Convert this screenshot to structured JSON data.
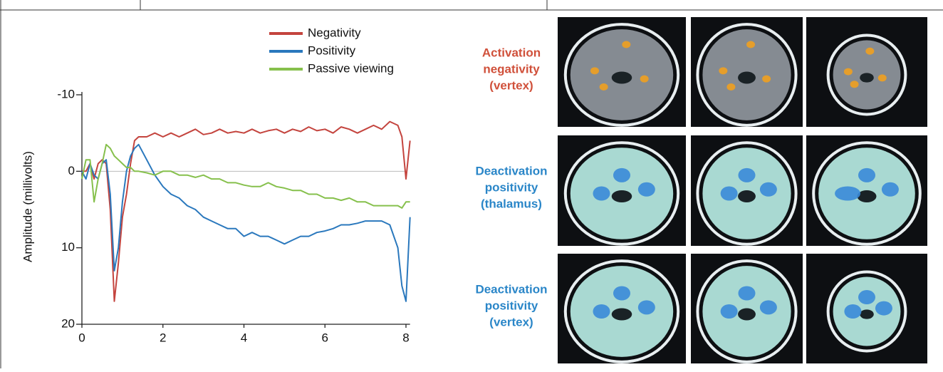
{
  "chart_data": {
    "type": "line",
    "y_label": "Amplitude (millivolts)",
    "x": [
      0,
      0.1,
      0.2,
      0.3,
      0.4,
      0.5,
      0.6,
      0.7,
      0.8,
      0.9,
      1.0,
      1.1,
      1.2,
      1.3,
      1.4,
      1.6,
      1.8,
      2.0,
      2.2,
      2.4,
      2.6,
      2.8,
      3.0,
      3.2,
      3.4,
      3.6,
      3.8,
      4.0,
      4.2,
      4.4,
      4.6,
      4.8,
      5.0,
      5.2,
      5.4,
      5.6,
      5.8,
      6.0,
      6.2,
      6.4,
      6.6,
      6.8,
      7.0,
      7.2,
      7.4,
      7.6,
      7.8,
      7.9,
      8.0,
      8.1
    ],
    "series": [
      {
        "name": "Negativity",
        "color": "#c4443e",
        "values": [
          0,
          0,
          -1,
          1,
          -1,
          -1.5,
          -1,
          5,
          17,
          12,
          6,
          3,
          -1,
          -4,
          -4.5,
          -4.5,
          -5,
          -4.5,
          -5,
          -4.5,
          -5,
          -5.5,
          -4.8,
          -5,
          -5.5,
          -5,
          -5.2,
          -5,
          -5.5,
          -5,
          -5.3,
          -5.5,
          -5,
          -5.5,
          -5.2,
          -5.8,
          -5.3,
          -5.5,
          -5,
          -5.8,
          -5.5,
          -5,
          -5.5,
          -6,
          -5.5,
          -6.5,
          -6,
          -4.5,
          1,
          -4
        ]
      },
      {
        "name": "Positivity",
        "color": "#2a78bd",
        "values": [
          0,
          1,
          -1,
          0.5,
          1,
          -1,
          -1.5,
          3,
          13,
          10,
          4,
          0,
          -2,
          -3,
          -3.5,
          -1.5,
          0.5,
          2,
          3,
          3.5,
          4.5,
          5,
          6,
          6.5,
          7,
          7.5,
          7.5,
          8.5,
          8,
          8.5,
          8.5,
          9,
          9.5,
          9,
          8.5,
          8.5,
          8,
          7.8,
          7.5,
          7,
          7,
          6.8,
          6.5,
          6.5,
          6.5,
          7,
          10,
          15,
          17,
          6
        ]
      },
      {
        "name": "Passive viewing",
        "color": "#86c04c",
        "values": [
          1,
          -1.5,
          -1.5,
          4,
          1,
          -1,
          -3.5,
          -3,
          -2,
          -1.5,
          -1,
          -0.5,
          -0.5,
          0,
          0,
          0.2,
          0.5,
          0,
          0,
          0.5,
          0.5,
          0.8,
          0.5,
          1,
          1,
          1.5,
          1.5,
          1.8,
          2,
          2,
          1.5,
          2,
          2.2,
          2.5,
          2.5,
          3,
          3,
          3.5,
          3.5,
          3.8,
          3.5,
          4,
          4,
          4.5,
          4.5,
          4.5,
          4.5,
          4.8,
          4,
          4
        ]
      }
    ],
    "xlim": [
      0,
      8.1
    ],
    "xticks": [
      0,
      2,
      4,
      6,
      8
    ],
    "ylim": [
      -10,
      20
    ],
    "yticks": [
      -10,
      0,
      10,
      20
    ],
    "y_inverted": true,
    "zero_line": true,
    "legend": "top-right"
  },
  "brain_panels": [
    {
      "label": [
        "Activation",
        "negativity",
        "(vertex)"
      ],
      "color": "#d0503a"
    },
    {
      "label": [
        "Deactivation",
        "positivity",
        "(thalamus)"
      ],
      "color": "#2a86c8"
    },
    {
      "label": [
        "Deactivation",
        "positivity",
        "(vertex)"
      ],
      "color": "#2a86c8"
    }
  ]
}
